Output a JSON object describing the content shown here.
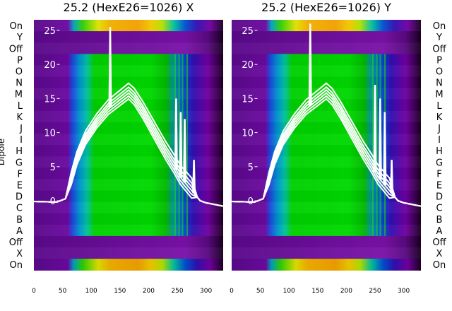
{
  "chart_data": [
    {
      "type": "heatmap",
      "title": "25.2 (HexE26=1026) X",
      "ylabel": "Dipole",
      "xlabel": "",
      "xlim": [
        0,
        330
      ],
      "x_ticks": [
        0,
        50,
        100,
        150,
        200,
        250,
        300
      ],
      "rows": [
        "On",
        "Y",
        "Off",
        "P",
        "O",
        "N",
        "M",
        "L",
        "K",
        "J",
        "I",
        "H",
        "G",
        "F",
        "E",
        "D",
        "C",
        "B",
        "A",
        "Off",
        "X",
        "On"
      ],
      "overlay": {
        "type": "line",
        "ylim": [
          -2,
          27
        ],
        "y_ticks": [
          0,
          5,
          10,
          15,
          20,
          25
        ],
        "x": [
          0,
          40,
          55,
          65,
          75,
          90,
          110,
          130,
          150,
          165,
          175,
          190,
          210,
          230,
          245,
          255,
          265,
          275,
          285,
          290,
          300,
          330
        ],
        "y": [
          -0.1,
          -0.2,
          0.3,
          3,
          6,
          9,
          11.5,
          13.5,
          14.8,
          15.8,
          15,
          13,
          10,
          7,
          5,
          3.5,
          2.5,
          1.5,
          0.5,
          0,
          -0.3,
          -0.8
        ],
        "spikes": [
          {
            "x": 133,
            "y": 25.5
          },
          {
            "x": 248,
            "y": 15
          },
          {
            "x": 256,
            "y": 13
          },
          {
            "x": 263,
            "y": 12
          },
          {
            "x": 279,
            "y": 6
          }
        ]
      }
    },
    {
      "type": "heatmap",
      "title": "25.2 (HexE26=1026) Y",
      "ylabel": "",
      "xlabel": "",
      "xlim": [
        0,
        330
      ],
      "x_ticks": [
        0,
        50,
        100,
        150,
        200,
        250,
        300
      ],
      "rows": [
        "On",
        "Y",
        "Off",
        "P",
        "O",
        "N",
        "M",
        "L",
        "K",
        "J",
        "I",
        "H",
        "G",
        "F",
        "E",
        "D",
        "C",
        "B",
        "A",
        "Off",
        "X",
        "On"
      ],
      "overlay": {
        "type": "line",
        "ylim": [
          -2,
          27
        ],
        "y_ticks": [
          0,
          5,
          10,
          15,
          20,
          25
        ],
        "x": [
          0,
          40,
          55,
          65,
          75,
          90,
          110,
          130,
          150,
          165,
          175,
          190,
          210,
          230,
          245,
          255,
          265,
          275,
          285,
          290,
          300,
          330
        ],
        "y": [
          -0.1,
          -0.2,
          0.3,
          3,
          6,
          9,
          11.5,
          13.5,
          14.8,
          15.8,
          15,
          13,
          10,
          7,
          5,
          3.5,
          2.5,
          1.5,
          0.5,
          0,
          -0.3,
          -0.8
        ],
        "spikes": [
          {
            "x": 137,
            "y": 26
          },
          {
            "x": 250,
            "y": 17
          },
          {
            "x": 259,
            "y": 15
          },
          {
            "x": 267,
            "y": 13
          },
          {
            "x": 279,
            "y": 6
          }
        ]
      }
    }
  ]
}
